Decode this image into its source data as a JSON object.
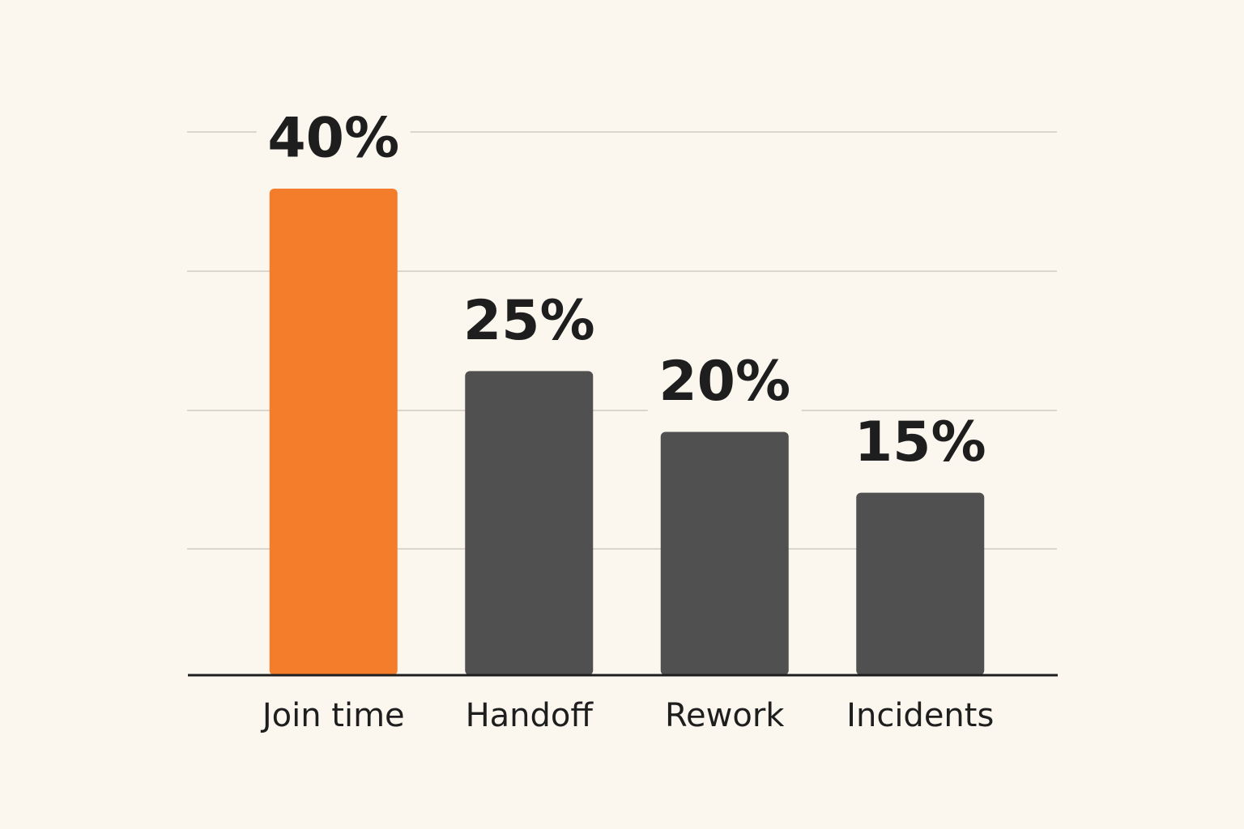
{
  "chart_data": {
    "type": "bar",
    "categories": [
      "Join time",
      "Handoff",
      "Rework",
      "Incidents"
    ],
    "values": [
      40,
      25,
      20,
      15
    ],
    "value_labels": [
      "40%",
      "25%",
      "20%",
      "15%"
    ],
    "colors": [
      "#f47d2c",
      "#505050",
      "#505050",
      "#505050"
    ]
  }
}
